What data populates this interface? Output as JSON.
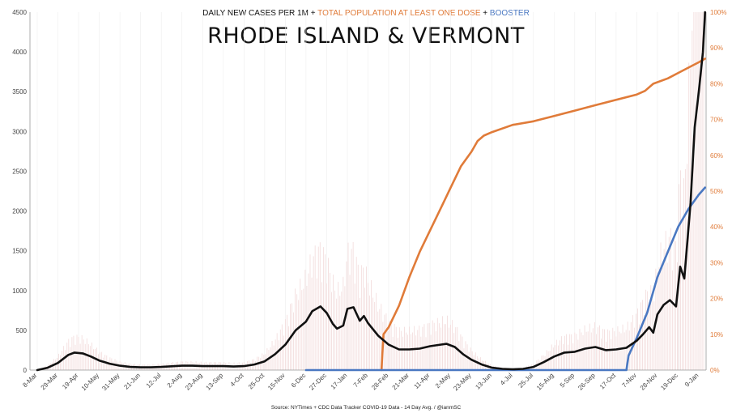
{
  "title": "RHODE ISLAND & VERMONT",
  "subtitle": {
    "part1": "DAILY NEW CASES PER 1M",
    "plus1": " + ",
    "part2": "TOTAL POPULATION AT LEAST ONE DOSE",
    "plus2": " + ",
    "part3": "BOOSTER"
  },
  "source": "Source: NYTimes + CDC Data Tracker COVID-19 Data - 14 Day Avg. / @ianmSC",
  "colors": {
    "cases": "#111111",
    "dose": "#e07b39",
    "booster": "#4a78c2",
    "grid": "#eeeeee",
    "bars": "#f2dada"
  },
  "chart_data": {
    "type": "line",
    "x_tick_labels": [
      "8-Mar",
      "29-Mar",
      "19-Apr",
      "10-May",
      "31-May",
      "21-Jun",
      "12-Jul",
      "2-Aug",
      "23-Aug",
      "13-Sep",
      "4-Oct",
      "25-Oct",
      "15-Nov",
      "6-Dec",
      "27-Dec",
      "17-Jan",
      "7-Feb",
      "28-Feb",
      "21-Mar",
      "11-Apr",
      "2-May",
      "23-May",
      "13-Jun",
      "4-Jul",
      "25-Jul",
      "15-Aug",
      "5-Sep",
      "26-Sep",
      "17-Oct",
      "7-Nov",
      "28-Nov",
      "19-Dec",
      "9-Jan"
    ],
    "y_left": {
      "ticks": [
        0,
        500,
        1000,
        1500,
        2000,
        2500,
        3000,
        3500,
        4000,
        4500
      ],
      "range": [
        0,
        4500
      ]
    },
    "y_right": {
      "ticks": [
        "0%",
        "10%",
        "20%",
        "30%",
        "40%",
        "50%",
        "60%",
        "70%",
        "80%",
        "90%",
        "100%"
      ],
      "range": [
        0,
        100
      ]
    },
    "series": [
      {
        "name": "DAILY NEW CASES PER 1M",
        "axis": "left",
        "points": [
          [
            0,
            0
          ],
          [
            0.5,
            30
          ],
          [
            1,
            90
          ],
          [
            1.5,
            190
          ],
          [
            1.8,
            220
          ],
          [
            2.2,
            210
          ],
          [
            2.6,
            170
          ],
          [
            3,
            120
          ],
          [
            3.5,
            80
          ],
          [
            4,
            55
          ],
          [
            4.5,
            40
          ],
          [
            5,
            35
          ],
          [
            5.5,
            35
          ],
          [
            6,
            40
          ],
          [
            6.5,
            48
          ],
          [
            7,
            55
          ],
          [
            7.5,
            55
          ],
          [
            8,
            50
          ],
          [
            8.5,
            50
          ],
          [
            9,
            50
          ],
          [
            9.5,
            45
          ],
          [
            10,
            50
          ],
          [
            10.5,
            70
          ],
          [
            11,
            110
          ],
          [
            11.5,
            200
          ],
          [
            12,
            320
          ],
          [
            12.5,
            500
          ],
          [
            13,
            610
          ],
          [
            13.3,
            740
          ],
          [
            13.7,
            800
          ],
          [
            14,
            720
          ],
          [
            14.3,
            580
          ],
          [
            14.5,
            520
          ],
          [
            14.8,
            560
          ],
          [
            15,
            770
          ],
          [
            15.3,
            790
          ],
          [
            15.6,
            620
          ],
          [
            15.8,
            680
          ],
          [
            16,
            590
          ],
          [
            16.5,
            430
          ],
          [
            17,
            320
          ],
          [
            17.5,
            260
          ],
          [
            18,
            260
          ],
          [
            18.5,
            270
          ],
          [
            19,
            300
          ],
          [
            19.5,
            320
          ],
          [
            19.8,
            330
          ],
          [
            20.2,
            290
          ],
          [
            20.6,
            200
          ],
          [
            21,
            130
          ],
          [
            21.5,
            70
          ],
          [
            22,
            30
          ],
          [
            22.5,
            15
          ],
          [
            23,
            10
          ],
          [
            23.5,
            15
          ],
          [
            24,
            40
          ],
          [
            24.5,
            100
          ],
          [
            25,
            170
          ],
          [
            25.5,
            220
          ],
          [
            26,
            230
          ],
          [
            26.5,
            270
          ],
          [
            27,
            290
          ],
          [
            27.5,
            250
          ],
          [
            28,
            260
          ],
          [
            28.5,
            280
          ],
          [
            29,
            370
          ],
          [
            29.3,
            450
          ],
          [
            29.6,
            540
          ],
          [
            29.8,
            470
          ],
          [
            30,
            700
          ],
          [
            30.3,
            820
          ],
          [
            30.6,
            880
          ],
          [
            30.9,
            800
          ],
          [
            31.1,
            1300
          ],
          [
            31.3,
            1150
          ],
          [
            31.6,
            2100
          ],
          [
            31.8,
            3050
          ],
          [
            32,
            3500
          ],
          [
            32.2,
            4000
          ],
          [
            32.3,
            4600
          ]
        ]
      },
      {
        "name": "TOTAL POPULATION AT LEAST ONE DOSE",
        "axis": "right",
        "points": [
          [
            16.65,
            0
          ],
          [
            16.75,
            10
          ],
          [
            17,
            12
          ],
          [
            17.5,
            18
          ],
          [
            18,
            26
          ],
          [
            18.5,
            33
          ],
          [
            19,
            39
          ],
          [
            19.5,
            45
          ],
          [
            20,
            51
          ],
          [
            20.5,
            57
          ],
          [
            21,
            61
          ],
          [
            21.3,
            64
          ],
          [
            21.6,
            65.5
          ],
          [
            22,
            66.5
          ],
          [
            23,
            68.5
          ],
          [
            24,
            69.5
          ],
          [
            25,
            71
          ],
          [
            26,
            72.5
          ],
          [
            27,
            74
          ],
          [
            28,
            75.5
          ],
          [
            29,
            77
          ],
          [
            29.4,
            78
          ],
          [
            29.8,
            80
          ],
          [
            30.5,
            81.5
          ],
          [
            31,
            83
          ],
          [
            31.5,
            84.5
          ],
          [
            32,
            86
          ],
          [
            32.3,
            87
          ]
        ]
      },
      {
        "name": "BOOSTER",
        "axis": "right",
        "points": [
          [
            13,
            0
          ],
          [
            28.5,
            0
          ],
          [
            28.6,
            4
          ],
          [
            29,
            9
          ],
          [
            29.5,
            16
          ],
          [
            30,
            26
          ],
          [
            30.5,
            33
          ],
          [
            31,
            40
          ],
          [
            31.5,
            45
          ],
          [
            32,
            49
          ],
          [
            32.3,
            51
          ]
        ]
      }
    ],
    "grid": false,
    "legend": "in subtitle"
  }
}
